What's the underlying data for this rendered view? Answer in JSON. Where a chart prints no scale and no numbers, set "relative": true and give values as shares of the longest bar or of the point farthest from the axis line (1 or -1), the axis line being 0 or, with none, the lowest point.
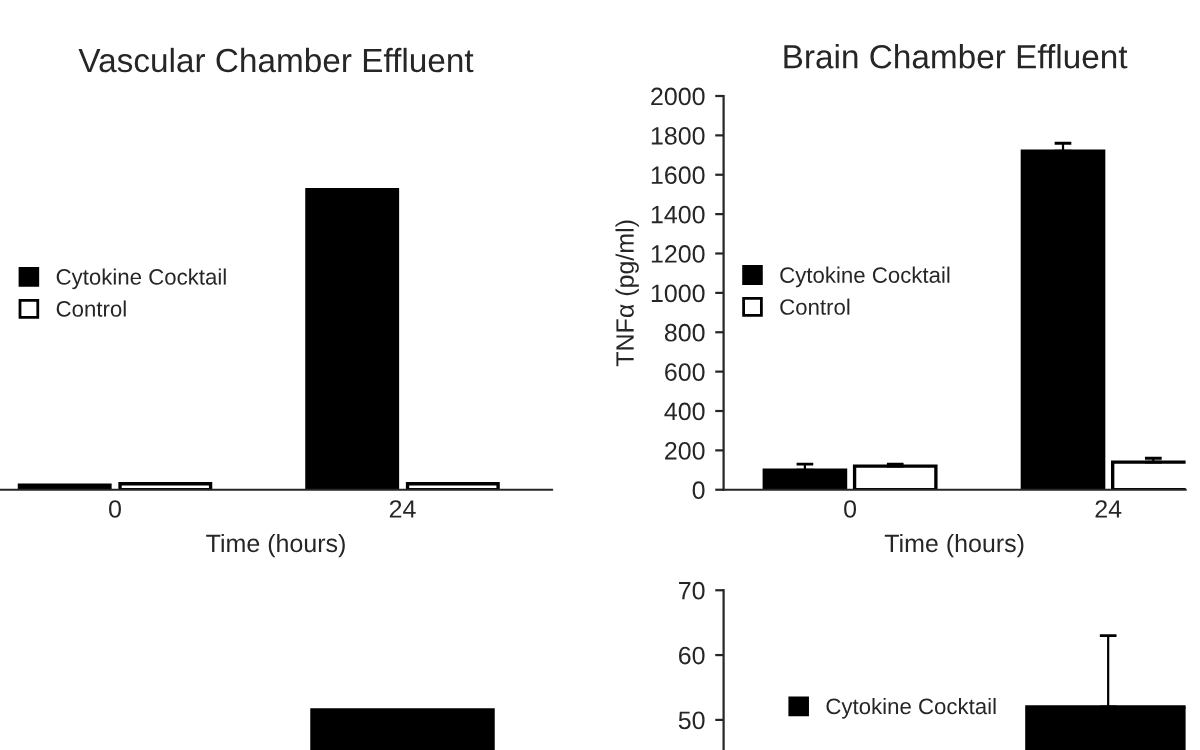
{
  "chart_data": [
    {
      "type": "bar",
      "title": "Vascular Chamber Effluent",
      "xlabel": "Time (hours)",
      "categories": [
        "0",
        "24"
      ],
      "relative": true,
      "legend": "left",
      "series": [
        {
          "name": "Cytokine Cocktail",
          "color": "#000000",
          "values": [
            0.015,
            1
          ]
        },
        {
          "name": "Control",
          "color": "#ffffff",
          "values": [
            0.02,
            0.02
          ]
        }
      ]
    },
    {
      "type": "bar",
      "title": "Brain Chamber Effluent",
      "xlabel": "Time (hours)",
      "ylabel": "TNFα (pg/ml)",
      "categories": [
        "0",
        "24"
      ],
      "legend": "left",
      "ylim": [
        0,
        2000
      ],
      "yticks": [
        0,
        200,
        400,
        600,
        800,
        1000,
        1200,
        1400,
        1600,
        1800,
        2000
      ],
      "series": [
        {
          "name": "Cytokine Cocktail",
          "color": "#000000",
          "values": [
            100,
            1720
          ],
          "errors": [
            30,
            40
          ]
        },
        {
          "name": "Control",
          "color": "#ffffff",
          "values": [
            120,
            140
          ],
          "errors": [
            10,
            20
          ]
        }
      ]
    },
    {
      "type": "bar",
      "categories": [
        null,
        null
      ],
      "relative": true,
      "series": [
        {
          "color": "#000000",
          "values": [
            null,
            1
          ]
        }
      ]
    },
    {
      "type": "bar",
      "categories": [
        null,
        null
      ],
      "legend": "left",
      "ylim": [
        0,
        70
      ],
      "yticks": [
        50,
        60,
        70
      ],
      "series": [
        {
          "name": "Cytokine Cocktail",
          "color": "#000000",
          "values": [
            null,
            52
          ],
          "errors": [
            null,
            11
          ]
        }
      ]
    }
  ]
}
